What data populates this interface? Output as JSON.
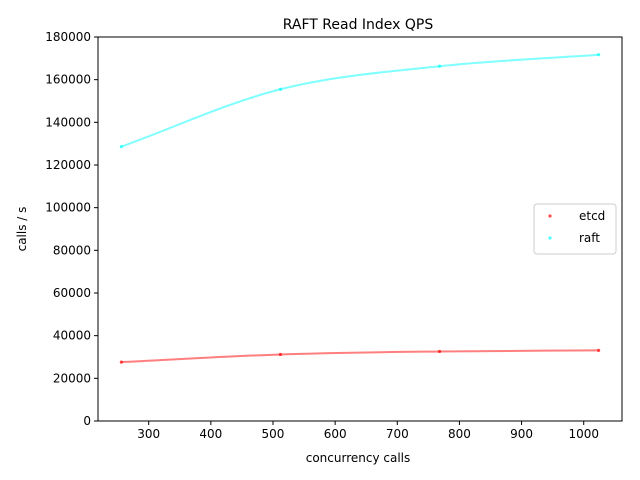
{
  "chart_data": {
    "type": "line",
    "title": "RAFT Read Index QPS",
    "xlabel": "concurrency calls",
    "ylabel": "calls / s",
    "xlim": [
      218.4,
      1061.6
    ],
    "ylim": [
      0,
      180000
    ],
    "xticks": [
      300,
      400,
      500,
      600,
      700,
      800,
      900,
      1000
    ],
    "yticks": [
      0,
      20000,
      40000,
      60000,
      80000,
      100000,
      120000,
      140000,
      160000,
      180000
    ],
    "grid": false,
    "legend_position": "center-right",
    "series": [
      {
        "name": "etcd",
        "color": "#ff0000",
        "points": {
          "x": [
            256,
            512,
            768,
            1024
          ],
          "y": [
            27600,
            31200,
            32600,
            33100
          ]
        }
      },
      {
        "name": "raft",
        "color": "#00ffff",
        "points": {
          "x": [
            256,
            512,
            768,
            1024
          ],
          "y": [
            128600,
            155500,
            166300,
            171700
          ]
        }
      }
    ]
  }
}
